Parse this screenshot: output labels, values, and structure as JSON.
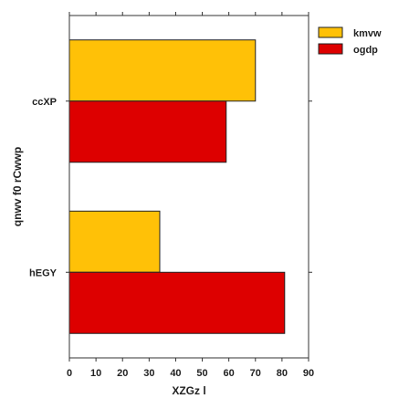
{
  "chart_data": {
    "type": "bar",
    "orientation": "horizontal",
    "categories": [
      "ccXP",
      "hEGY"
    ],
    "series": [
      {
        "name": "kmvw",
        "values": [
          70,
          34
        ],
        "color": "#FFC107"
      },
      {
        "name": "ogdp",
        "values": [
          59,
          81
        ],
        "color": "#DD0000"
      }
    ],
    "xlabel": "XZGz l",
    "ylabel": "qnwv  f0 rCwwp",
    "xlim": [
      0,
      90
    ],
    "xticks": [
      "0",
      "10",
      "20",
      "30",
      "40",
      "50",
      "60",
      "70",
      "80",
      "90"
    ],
    "grid": false,
    "legend_position": "top-right"
  }
}
